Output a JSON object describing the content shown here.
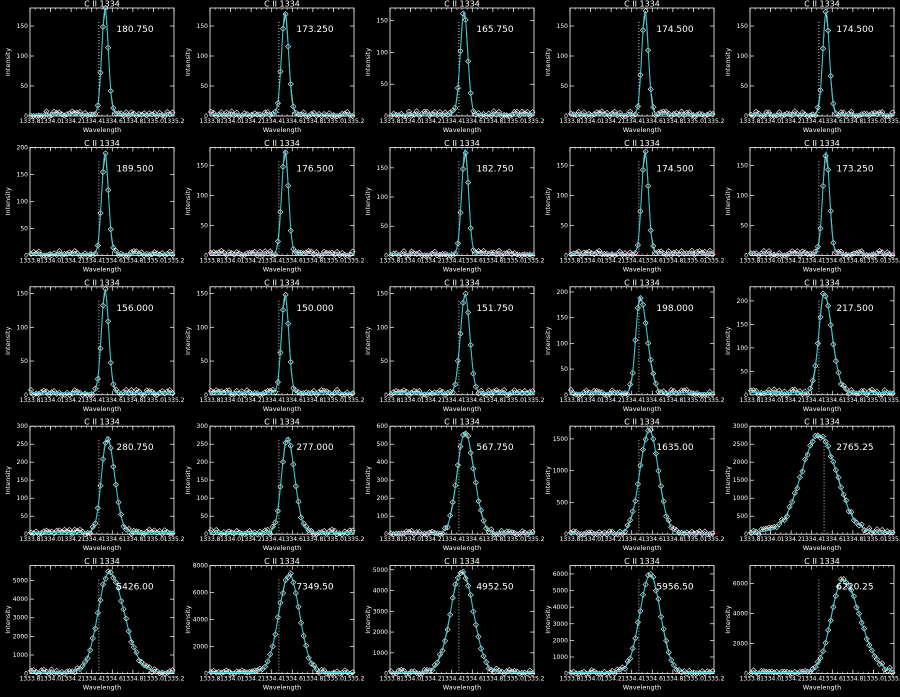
{
  "figure": {
    "background": "#000000",
    "axis_color": "#ffffff",
    "fit_color": "#33c3cc",
    "marker_color": "#ffffff"
  },
  "chart_data": [
    {
      "type": "line",
      "title": "C II 1334",
      "xlabel": "Wavelength",
      "ylabel": "Intensity",
      "xlim": [
        1333.8,
        1335.2
      ],
      "ylim": [
        0,
        180
      ],
      "xticks": [
        1333.8,
        1334.0,
        1334.2,
        1334.4,
        1334.6,
        1334.8,
        1335.0,
        1335.2
      ],
      "yticks": [
        0,
        50,
        100,
        150
      ],
      "peak_label": "180.750",
      "peak": 178,
      "center": 1334.53,
      "sigma": 0.032,
      "skew": 0.0,
      "baseline": 3,
      "dotted_x": 1334.47,
      "markers": "diamond",
      "fit_line": true
    },
    {
      "type": "line",
      "title": "C II 1334",
      "xlabel": "Wavelength",
      "ylabel": "Intensity",
      "xlim": [
        1333.8,
        1335.2
      ],
      "ylim": [
        0,
        180
      ],
      "xticks": [
        1333.8,
        1334.0,
        1334.2,
        1334.4,
        1334.6,
        1334.8,
        1335.0,
        1335.2
      ],
      "yticks": [
        0,
        50,
        100,
        150
      ],
      "peak_label": "173.250",
      "peak": 172,
      "center": 1334.53,
      "sigma": 0.034,
      "skew": 0.0,
      "baseline": 3,
      "dotted_x": 1334.47,
      "markers": "diamond",
      "fit_line": true
    },
    {
      "type": "line",
      "title": "C II 1334",
      "xlabel": "Wavelength",
      "ylabel": "Intensity",
      "xlim": [
        1333.8,
        1335.2
      ],
      "ylim": [
        0,
        170
      ],
      "xticks": [
        1333.8,
        1334.0,
        1334.2,
        1334.4,
        1334.6,
        1334.8,
        1335.0,
        1335.2
      ],
      "yticks": [
        0,
        50,
        100,
        150
      ],
      "peak_label": "165.750",
      "peak": 164,
      "center": 1334.52,
      "sigma": 0.036,
      "skew": 0.0,
      "baseline": 3,
      "dotted_x": 1334.47,
      "markers": "diamond",
      "fit_line": true
    },
    {
      "type": "line",
      "title": "C II 1334",
      "xlabel": "Wavelength",
      "ylabel": "Intensity",
      "xlim": [
        1333.8,
        1335.2
      ],
      "ylim": [
        0,
        180
      ],
      "xticks": [
        1333.8,
        1334.0,
        1334.2,
        1334.4,
        1334.6,
        1334.8,
        1335.0,
        1335.2
      ],
      "yticks": [
        0,
        50,
        100,
        150
      ],
      "peak_label": "174.500",
      "peak": 173,
      "center": 1334.53,
      "sigma": 0.032,
      "skew": 0.0,
      "baseline": 3,
      "dotted_x": 1334.47,
      "markers": "diamond",
      "fit_line": true
    },
    {
      "type": "line",
      "title": "C II 1334",
      "xlabel": "Wavelength",
      "ylabel": "Intensity",
      "xlim": [
        1333.8,
        1335.2
      ],
      "ylim": [
        0,
        180
      ],
      "xticks": [
        1333.8,
        1334.0,
        1334.2,
        1334.4,
        1334.6,
        1334.8,
        1335.0,
        1335.2
      ],
      "yticks": [
        0,
        50,
        100,
        150
      ],
      "peak_label": "174.500",
      "peak": 173,
      "center": 1334.54,
      "sigma": 0.032,
      "skew": 0.0,
      "baseline": 3,
      "dotted_x": 1334.47,
      "markers": "diamond",
      "fit_line": true
    },
    {
      "type": "line",
      "title": "C II 1334",
      "xlabel": "Wavelength",
      "ylabel": "Intensity",
      "xlim": [
        1333.8,
        1335.2
      ],
      "ylim": [
        0,
        200
      ],
      "xticks": [
        1333.8,
        1334.0,
        1334.2,
        1334.4,
        1334.6,
        1334.8,
        1335.0,
        1335.2
      ],
      "yticks": [
        0,
        50,
        100,
        150,
        200
      ],
      "peak_label": "189.500",
      "peak": 188,
      "center": 1334.53,
      "sigma": 0.033,
      "skew": 0.0,
      "baseline": 3,
      "dotted_x": 1334.47,
      "markers": "diamond",
      "fit_line": true
    },
    {
      "type": "line",
      "title": "C II 1334",
      "xlabel": "Wavelength",
      "ylabel": "Intensity",
      "xlim": [
        1333.8,
        1335.2
      ],
      "ylim": [
        0,
        180
      ],
      "xticks": [
        1333.8,
        1334.0,
        1334.2,
        1334.4,
        1334.6,
        1334.8,
        1335.0,
        1335.2
      ],
      "yticks": [
        0,
        50,
        100,
        150
      ],
      "peak_label": "176.500",
      "peak": 175,
      "center": 1334.53,
      "sigma": 0.033,
      "skew": 0.0,
      "baseline": 3,
      "dotted_x": 1334.47,
      "markers": "diamond",
      "fit_line": true
    },
    {
      "type": "line",
      "title": "C II 1334",
      "xlabel": "Wavelength",
      "ylabel": "Intensity",
      "xlim": [
        1333.8,
        1335.2
      ],
      "ylim": [
        0,
        185
      ],
      "xticks": [
        1333.8,
        1334.0,
        1334.2,
        1334.4,
        1334.6,
        1334.8,
        1335.0,
        1335.2
      ],
      "yticks": [
        0,
        50,
        100,
        150
      ],
      "peak_label": "182.750",
      "peak": 181,
      "center": 1334.53,
      "sigma": 0.033,
      "skew": 0.0,
      "baseline": 3,
      "dotted_x": 1334.47,
      "markers": "diamond",
      "fit_line": true
    },
    {
      "type": "line",
      "title": "C II 1334",
      "xlabel": "Wavelength",
      "ylabel": "Intensity",
      "xlim": [
        1333.8,
        1335.2
      ],
      "ylim": [
        0,
        180
      ],
      "xticks": [
        1333.8,
        1334.0,
        1334.2,
        1334.4,
        1334.6,
        1334.8,
        1335.0,
        1335.2
      ],
      "yticks": [
        0,
        50,
        100,
        150
      ],
      "peak_label": "174.500",
      "peak": 173,
      "center": 1334.53,
      "sigma": 0.033,
      "skew": 0.0,
      "baseline": 3,
      "dotted_x": 1334.47,
      "markers": "diamond",
      "fit_line": true
    },
    {
      "type": "line",
      "title": "C II 1334",
      "xlabel": "Wavelength",
      "ylabel": "Intensity",
      "xlim": [
        1333.8,
        1335.2
      ],
      "ylim": [
        0,
        180
      ],
      "xticks": [
        1333.8,
        1334.0,
        1334.2,
        1334.4,
        1334.6,
        1334.8,
        1335.0,
        1335.2
      ],
      "yticks": [
        0,
        50,
        100,
        150
      ],
      "peak_label": "173.250",
      "peak": 172,
      "center": 1334.54,
      "sigma": 0.033,
      "skew": 0.0,
      "baseline": 3,
      "dotted_x": 1334.47,
      "markers": "diamond",
      "fit_line": true
    },
    {
      "type": "line",
      "title": "C II 1334",
      "xlabel": "Wavelength",
      "ylabel": "Intensity",
      "xlim": [
        1333.8,
        1335.2
      ],
      "ylim": [
        0,
        160
      ],
      "xticks": [
        1333.8,
        1334.0,
        1334.2,
        1334.4,
        1334.6,
        1334.8,
        1335.0,
        1335.2
      ],
      "yticks": [
        0,
        50,
        100,
        150
      ],
      "peak_label": "156.000",
      "peak": 154,
      "center": 1334.53,
      "sigma": 0.036,
      "skew": 0.0,
      "baseline": 3,
      "dotted_x": 1334.47,
      "markers": "diamond",
      "fit_line": true
    },
    {
      "type": "line",
      "title": "C II 1334",
      "xlabel": "Wavelength",
      "ylabel": "Intensity",
      "xlim": [
        1333.8,
        1335.2
      ],
      "ylim": [
        0,
        160
      ],
      "xticks": [
        1333.8,
        1334.0,
        1334.2,
        1334.4,
        1334.6,
        1334.8,
        1335.0,
        1335.2
      ],
      "yticks": [
        0,
        50,
        100,
        150
      ],
      "peak_label": "150.000",
      "peak": 148,
      "center": 1334.53,
      "sigma": 0.035,
      "skew": 0.0,
      "baseline": 3,
      "dotted_x": 1334.47,
      "markers": "diamond",
      "fit_line": true
    },
    {
      "type": "line",
      "title": "C II 1334",
      "xlabel": "Wavelength",
      "ylabel": "Intensity",
      "xlim": [
        1333.8,
        1335.2
      ],
      "ylim": [
        0,
        160
      ],
      "xticks": [
        1333.8,
        1334.0,
        1334.2,
        1334.4,
        1334.6,
        1334.8,
        1335.0,
        1335.2
      ],
      "yticks": [
        0,
        50,
        100,
        150
      ],
      "peak_label": "151.750",
      "peak": 148,
      "center": 1334.53,
      "sigma": 0.045,
      "skew": 0.0,
      "baseline": 3,
      "dotted_x": 1334.47,
      "markers": "diamond",
      "fit_line": true
    },
    {
      "type": "line",
      "title": "C II 1334",
      "xlabel": "Wavelength",
      "ylabel": "Intensity",
      "xlim": [
        1333.8,
        1335.2
      ],
      "ylim": [
        0,
        210
      ],
      "xticks": [
        1333.8,
        1334.0,
        1334.2,
        1334.4,
        1334.6,
        1334.8,
        1335.0,
        1335.2
      ],
      "yticks": [
        0,
        50,
        100,
        150,
        200
      ],
      "peak_label": "198.000",
      "peak": 190,
      "center": 1334.48,
      "sigma": 0.05,
      "skew": 0.4,
      "baseline": 4,
      "dotted_x": 1334.47,
      "markers": "diamond",
      "fit_line": true
    },
    {
      "type": "line",
      "title": "C II 1334",
      "xlabel": "Wavelength",
      "ylabel": "Intensity",
      "xlim": [
        1333.8,
        1335.2
      ],
      "ylim": [
        0,
        230
      ],
      "xticks": [
        1333.8,
        1334.0,
        1334.2,
        1334.4,
        1334.6,
        1334.8,
        1335.0,
        1335.2
      ],
      "yticks": [
        0,
        50,
        100,
        150,
        200
      ],
      "peak_label": "217.500",
      "peak": 215,
      "center": 1334.52,
      "sigma": 0.06,
      "skew": 0.3,
      "baseline": 5,
      "dotted_x": 1334.47,
      "markers": "diamond",
      "fit_line": true
    },
    {
      "type": "line",
      "title": "C II 1334",
      "xlabel": "Wavelength",
      "ylabel": "Intensity",
      "xlim": [
        1333.8,
        1335.2
      ],
      "ylim": [
        0,
        300
      ],
      "xticks": [
        1333.8,
        1334.0,
        1334.2,
        1334.4,
        1334.6,
        1334.8,
        1335.0,
        1335.2
      ],
      "yticks": [
        0,
        50,
        100,
        150,
        200,
        250,
        300
      ],
      "peak_label": "280.750",
      "peak": 270,
      "center": 1334.55,
      "sigma": 0.06,
      "skew": 0.2,
      "baseline": 5,
      "dotted_x": 1334.47,
      "markers": "diamond",
      "fit_line": true
    },
    {
      "type": "line",
      "title": "C II 1334",
      "xlabel": "Wavelength",
      "ylabel": "Intensity",
      "xlim": [
        1333.8,
        1335.2
      ],
      "ylim": [
        0,
        300
      ],
      "xticks": [
        1333.8,
        1334.0,
        1334.2,
        1334.4,
        1334.6,
        1334.8,
        1335.0,
        1335.2
      ],
      "yticks": [
        0,
        50,
        100,
        150,
        200,
        250,
        300
      ],
      "peak_label": "277.000",
      "peak": 268,
      "center": 1334.55,
      "sigma": 0.06,
      "skew": 0.2,
      "baseline": 5,
      "dotted_x": 1334.47,
      "markers": "diamond",
      "fit_line": true
    },
    {
      "type": "line",
      "title": "C II 1334",
      "xlabel": "Wavelength",
      "ylabel": "Intensity",
      "xlim": [
        1333.8,
        1335.2
      ],
      "ylim": [
        0,
        600
      ],
      "xticks": [
        1333.8,
        1334.0,
        1334.2,
        1334.4,
        1334.6,
        1334.8,
        1335.0,
        1335.2
      ],
      "yticks": [
        0,
        100,
        200,
        300,
        400,
        500,
        600
      ],
      "peak_label": "567.750",
      "peak": 565,
      "center": 1334.53,
      "sigma": 0.08,
      "skew": 0.1,
      "baseline": 5,
      "dotted_x": 1334.47,
      "markers": "diamond",
      "fit_line": true
    },
    {
      "type": "line",
      "title": "C II 1334",
      "xlabel": "Wavelength",
      "ylabel": "Intensity",
      "xlim": [
        1333.8,
        1335.2
      ],
      "ylim": [
        0,
        1700
      ],
      "xticks": [
        1333.8,
        1334.0,
        1334.2,
        1334.4,
        1334.6,
        1334.8,
        1335.0,
        1335.2
      ],
      "yticks": [
        0,
        500,
        1000,
        1500
      ],
      "peak_label": "1635.00",
      "peak": 1635,
      "center": 1334.57,
      "sigma": 0.09,
      "skew": 0.0,
      "baseline": 10,
      "dotted_x": 1334.47,
      "markers": "diamond",
      "fit_line": true
    },
    {
      "type": "line",
      "title": "C II 1334",
      "xlabel": "Wavelength",
      "ylabel": "Intensity",
      "xlim": [
        1333.8,
        1335.2
      ],
      "ylim": [
        0,
        3000
      ],
      "xticks": [
        1333.8,
        1334.0,
        1334.2,
        1334.4,
        1334.6,
        1334.8,
        1335.0,
        1335.2
      ],
      "yticks": [
        0,
        500,
        1000,
        1500,
        2000,
        2500,
        3000
      ],
      "peak_label": "2765.25",
      "peak": 2765,
      "center": 1334.47,
      "sigma": 0.17,
      "skew": 0.0,
      "baseline": 60,
      "dotted_x": 1334.52,
      "markers": "diamond",
      "fit_line": true
    },
    {
      "type": "line",
      "title": "C II 1334",
      "xlabel": "Wavelength",
      "ylabel": "Intensity",
      "xlim": [
        1333.8,
        1335.2
      ],
      "ylim": [
        0,
        5800
      ],
      "xticks": [
        1333.8,
        1334.0,
        1334.2,
        1334.4,
        1334.6,
        1334.8,
        1335.0,
        1335.2
      ],
      "yticks": [
        0,
        1000,
        2000,
        3000,
        4000,
        5000
      ],
      "peak_label": "5426.00",
      "peak": 5426,
      "center": 1334.57,
      "sigma": 0.12,
      "skew": 0.2,
      "baseline": 80,
      "dotted_x": 1334.47,
      "markers": "diamond",
      "fit_line": true
    },
    {
      "type": "line",
      "title": "C II 1334",
      "xlabel": "Wavelength",
      "ylabel": "Intensity",
      "xlim": [
        1333.8,
        1335.2
      ],
      "ylim": [
        0,
        8000
      ],
      "xticks": [
        1333.8,
        1334.0,
        1334.2,
        1334.4,
        1334.6,
        1334.8,
        1335.0,
        1335.2
      ],
      "yticks": [
        0,
        2000,
        4000,
        6000,
        8000
      ],
      "peak_label": "7349.50",
      "peak": 7349,
      "center": 1334.57,
      "sigma": 0.1,
      "skew": 0.0,
      "baseline": 80,
      "dotted_x": 1334.47,
      "markers": "diamond",
      "fit_line": true
    },
    {
      "type": "line",
      "title": "C II 1334",
      "xlabel": "Wavelength",
      "ylabel": "Intensity",
      "xlim": [
        1333.8,
        1335.2
      ],
      "ylim": [
        0,
        5200
      ],
      "xticks": [
        1333.8,
        1334.0,
        1334.2,
        1334.4,
        1334.6,
        1334.8,
        1335.0,
        1335.2
      ],
      "yticks": [
        0,
        1000,
        2000,
        3000,
        4000,
        5000
      ],
      "peak_label": "4952.50",
      "peak": 4952,
      "center": 1334.5,
      "sigma": 0.11,
      "skew": 0.0,
      "baseline": 70,
      "dotted_x": 1334.47,
      "markers": "diamond",
      "fit_line": true
    },
    {
      "type": "line",
      "title": "C II 1334",
      "xlabel": "Wavelength",
      "ylabel": "Intensity",
      "xlim": [
        1333.8,
        1335.2
      ],
      "ylim": [
        0,
        6500
      ],
      "xticks": [
        1333.8,
        1334.0,
        1334.2,
        1334.4,
        1334.6,
        1334.8,
        1335.0,
        1335.2
      ],
      "yticks": [
        0,
        1000,
        2000,
        3000,
        4000,
        5000,
        6000
      ],
      "peak_label": "5956.50",
      "peak": 5956,
      "center": 1334.58,
      "sigma": 0.1,
      "skew": 0.0,
      "baseline": 70,
      "dotted_x": 1334.47,
      "markers": "diamond",
      "fit_line": true
    },
    {
      "type": "line",
      "title": "C II 1334",
      "xlabel": "Wavelength",
      "ylabel": "Intensity",
      "xlim": [
        1333.8,
        1335.2
      ],
      "ylim": [
        0,
        7200
      ],
      "xticks": [
        1333.8,
        1334.0,
        1334.2,
        1334.4,
        1334.6,
        1334.8,
        1335.0,
        1335.2
      ],
      "yticks": [
        0,
        2000,
        4000,
        6000
      ],
      "peak_label": "6220.25",
      "peak": 6220,
      "center": 1334.7,
      "sigma": 0.13,
      "skew": 0.3,
      "baseline": 80,
      "dotted_x": 1334.47,
      "markers": "diamond",
      "fit_line": true
    }
  ]
}
